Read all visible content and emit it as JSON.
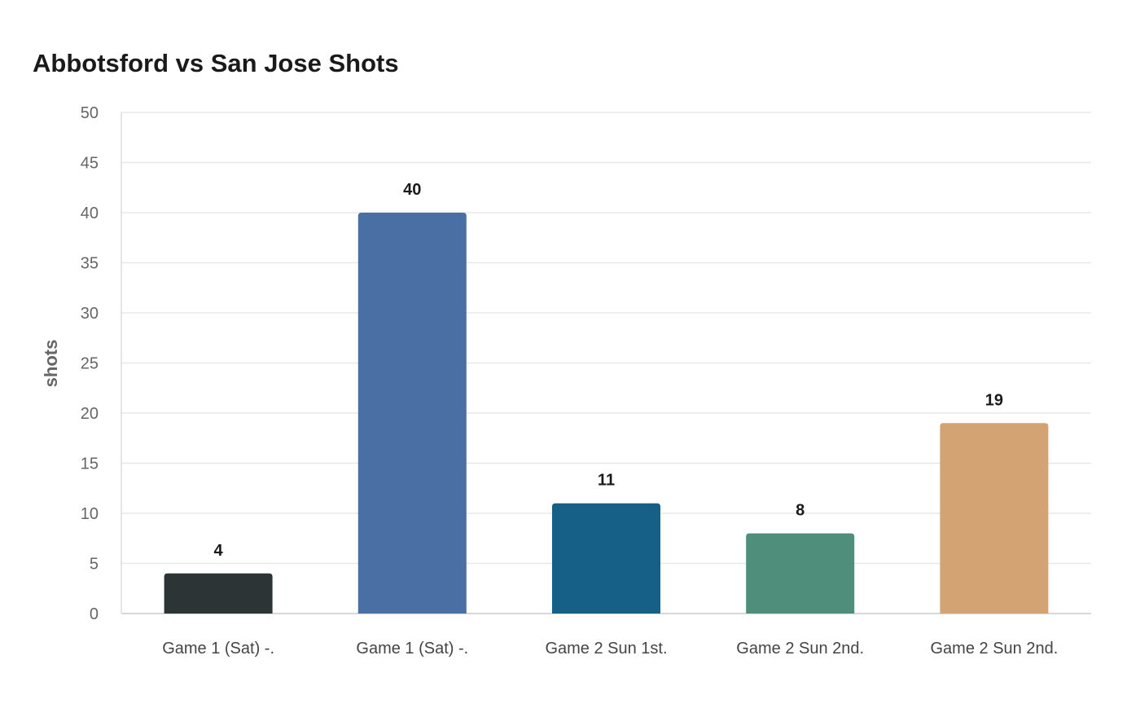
{
  "chart_data": {
    "type": "bar",
    "title": "Abbotsford vs San Jose Shots",
    "xlabel": "",
    "ylabel": "shots",
    "categories": [
      "Game 1 (Sat) -.",
      "Game 1 (Sat) -.",
      "Game 2 Sun 1st.",
      "Game 2 Sun 2nd.",
      "Game 2 Sun 2nd."
    ],
    "values": [
      4,
      40,
      11,
      8,
      19
    ],
    "colors": [
      "#2d3436",
      "#4a6fa5",
      "#166088",
      "#4f8e7b",
      "#d4a373"
    ],
    "ylim": [
      0,
      50
    ],
    "yticks": [
      0,
      5,
      10,
      15,
      20,
      25,
      30,
      35,
      40,
      45,
      50
    ],
    "grid": true,
    "data_labels": true
  }
}
